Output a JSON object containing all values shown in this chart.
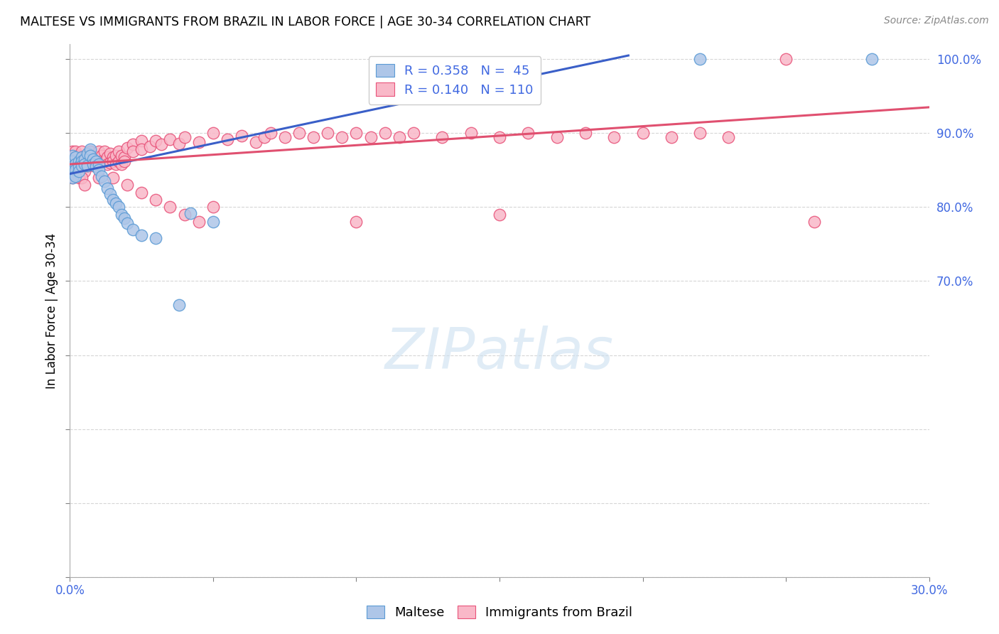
{
  "title": "MALTESE VS IMMIGRANTS FROM BRAZIL IN LABOR FORCE | AGE 30-34 CORRELATION CHART",
  "source": "Source: ZipAtlas.com",
  "ylabel": "In Labor Force | Age 30-34",
  "xlim": [
    0.0,
    0.3
  ],
  "ylim": [
    0.3,
    1.02
  ],
  "xtick_positions": [
    0.0,
    0.05,
    0.1,
    0.15,
    0.2,
    0.25,
    0.3
  ],
  "xticklabels": [
    "0.0%",
    "",
    "",
    "",
    "",
    "",
    "30.0%"
  ],
  "ytick_positions": [
    0.3,
    0.4,
    0.5,
    0.6,
    0.7,
    0.8,
    0.9,
    1.0
  ],
  "yticklabels": [
    "",
    "",
    "",
    "",
    "70.0%",
    "80.0%",
    "90.0%",
    "100.0%"
  ],
  "maltese_color": "#aec6e8",
  "brazil_color": "#f9b8c8",
  "maltese_edge": "#5b9bd5",
  "brazil_edge": "#e8537a",
  "trend_blue": "#3a5fc8",
  "trend_pink": "#e05070",
  "R_blue": 0.358,
  "N_blue": 45,
  "R_pink": 0.14,
  "N_pink": 110,
  "blue_trend_x": [
    0.0,
    0.195
  ],
  "blue_trend_y": [
    0.845,
    1.005
  ],
  "pink_trend_x": [
    0.0,
    0.3
  ],
  "pink_trend_y": [
    0.858,
    0.935
  ],
  "maltese_x": [
    0.001,
    0.001,
    0.001,
    0.001,
    0.001,
    0.002,
    0.002,
    0.002,
    0.002,
    0.003,
    0.003,
    0.003,
    0.004,
    0.004,
    0.004,
    0.005,
    0.005,
    0.006,
    0.006,
    0.007,
    0.007,
    0.008,
    0.008,
    0.009,
    0.009,
    0.01,
    0.01,
    0.011,
    0.012,
    0.013,
    0.014,
    0.015,
    0.016,
    0.017,
    0.018,
    0.019,
    0.02,
    0.022,
    0.025,
    0.03,
    0.038,
    0.042,
    0.05,
    0.22,
    0.28
  ],
  "maltese_y": [
    0.87,
    0.862,
    0.855,
    0.848,
    0.84,
    0.868,
    0.858,
    0.85,
    0.842,
    0.862,
    0.855,
    0.848,
    0.868,
    0.862,
    0.856,
    0.865,
    0.858,
    0.872,
    0.856,
    0.878,
    0.87,
    0.865,
    0.858,
    0.862,
    0.855,
    0.858,
    0.85,
    0.842,
    0.835,
    0.825,
    0.818,
    0.81,
    0.805,
    0.8,
    0.79,
    0.785,
    0.778,
    0.77,
    0.762,
    0.758,
    0.668,
    0.792,
    0.78,
    1.0,
    1.0
  ],
  "brazil_x": [
    0.001,
    0.001,
    0.001,
    0.001,
    0.001,
    0.001,
    0.002,
    0.002,
    0.002,
    0.002,
    0.002,
    0.002,
    0.003,
    0.003,
    0.003,
    0.003,
    0.004,
    0.004,
    0.004,
    0.004,
    0.005,
    0.005,
    0.005,
    0.005,
    0.006,
    0.006,
    0.006,
    0.007,
    0.007,
    0.007,
    0.008,
    0.008,
    0.008,
    0.009,
    0.009,
    0.01,
    0.01,
    0.011,
    0.011,
    0.012,
    0.012,
    0.013,
    0.013,
    0.014,
    0.014,
    0.015,
    0.015,
    0.016,
    0.016,
    0.017,
    0.017,
    0.018,
    0.018,
    0.019,
    0.019,
    0.02,
    0.022,
    0.022,
    0.025,
    0.025,
    0.028,
    0.03,
    0.032,
    0.035,
    0.038,
    0.04,
    0.045,
    0.05,
    0.055,
    0.06,
    0.065,
    0.068,
    0.07,
    0.075,
    0.08,
    0.085,
    0.09,
    0.095,
    0.1,
    0.105,
    0.11,
    0.115,
    0.12,
    0.13,
    0.14,
    0.15,
    0.16,
    0.17,
    0.18,
    0.19,
    0.2,
    0.21,
    0.22,
    0.23,
    0.25,
    0.26,
    0.015,
    0.02,
    0.025,
    0.03,
    0.035,
    0.04,
    0.045,
    0.05,
    0.1,
    0.15,
    0.003,
    0.004,
    0.005,
    0.01
  ],
  "brazil_y": [
    0.87,
    0.862,
    0.855,
    0.848,
    0.84,
    0.875,
    0.875,
    0.868,
    0.862,
    0.856,
    0.85,
    0.865,
    0.87,
    0.862,
    0.855,
    0.848,
    0.875,
    0.868,
    0.862,
    0.855,
    0.868,
    0.862,
    0.855,
    0.848,
    0.87,
    0.862,
    0.856,
    0.875,
    0.868,
    0.862,
    0.87,
    0.862,
    0.856,
    0.868,
    0.862,
    0.875,
    0.862,
    0.87,
    0.862,
    0.875,
    0.862,
    0.868,
    0.858,
    0.872,
    0.86,
    0.868,
    0.862,
    0.87,
    0.858,
    0.875,
    0.862,
    0.87,
    0.858,
    0.868,
    0.862,
    0.88,
    0.885,
    0.875,
    0.89,
    0.878,
    0.882,
    0.89,
    0.885,
    0.892,
    0.886,
    0.895,
    0.888,
    0.9,
    0.892,
    0.896,
    0.888,
    0.895,
    0.9,
    0.895,
    0.9,
    0.895,
    0.9,
    0.895,
    0.9,
    0.895,
    0.9,
    0.895,
    0.9,
    0.895,
    0.9,
    0.895,
    0.9,
    0.895,
    0.9,
    0.895,
    0.9,
    0.895,
    0.9,
    0.895,
    1.0,
    0.78,
    0.84,
    0.83,
    0.82,
    0.81,
    0.8,
    0.79,
    0.78,
    0.8,
    0.78,
    0.79,
    0.84,
    0.84,
    0.83,
    0.84
  ],
  "watermark_text": "ZIPatlas",
  "watermark_color": "#cce0f0",
  "watermark_alpha": 0.6,
  "grid_color": "#cccccc",
  "grid_style": "--",
  "background": "#ffffff",
  "tick_color": "#4169e1",
  "title_fontsize": 12.5,
  "axis_label_fontsize": 12,
  "tick_fontsize": 12,
  "legend_fontsize": 13,
  "source_fontsize": 10
}
